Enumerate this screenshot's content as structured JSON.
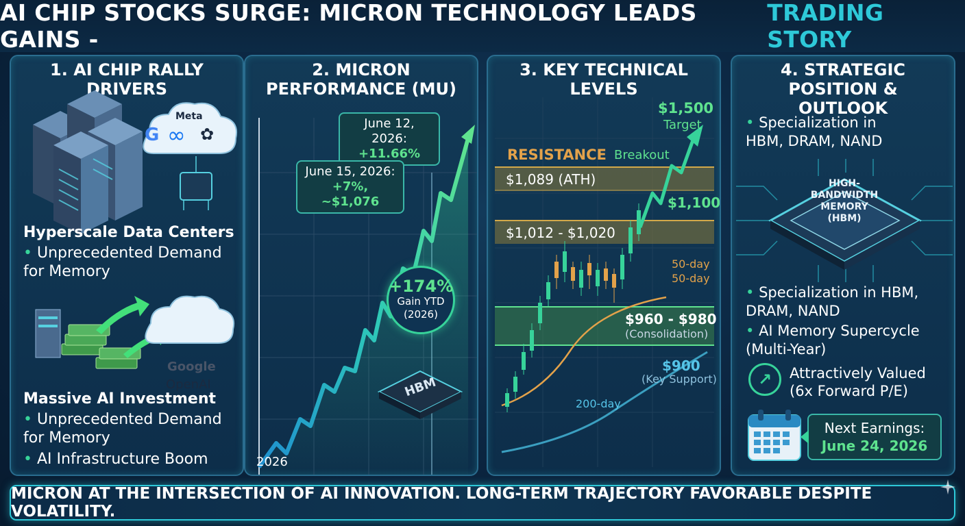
{
  "header": {
    "title_main": "AI CHIP STOCKS SURGE: MICRON TECHNOLOGY LEADS GAINS -",
    "title_accent": "TRADING STORY"
  },
  "panel1": {
    "title": "1. AI CHIP RALLY DRIVERS",
    "logos_top": [
      "Meta"
    ],
    "logos_bottom": [
      "Google",
      "OpenAI"
    ],
    "section1_title": "Hyperscale Data Centers",
    "section1_bullets": [
      "Unprecedented Demand for Memory"
    ],
    "section2_title": "Massive AI Investment",
    "section2_bullets": [
      "Unprecedented Demand for Memory",
      "AI Infrastructure Boom"
    ]
  },
  "panel2": {
    "title": "2. MICRON PERFORMANCE (MU)",
    "callout1_date": "June 12, 2026:",
    "callout1_value": "+11.66%",
    "callout2_date": "June 15, 2026:",
    "callout2_value": "+7%, ~$1,076",
    "gain_value": "+174%",
    "gain_label": "Gain YTD",
    "gain_year": "(2026)",
    "chip_label": "HBM",
    "x_label": "2026"
  },
  "panel3": {
    "title": "3. KEY TECHNICAL LEVELS",
    "target_value": "$1,500",
    "target_label": "Target",
    "resistance_label": "RESISTANCE",
    "breakout_label": "Breakout",
    "ath_label": "$1,089 (ATH)",
    "level_1100": "$1,100",
    "range_label": "$1,012 - $1,020",
    "ma50_label_1": "50-day",
    "ma50_label_2": "50-day",
    "consol_value": "$960 - $980",
    "consol_label": "(Consolidation)",
    "support_value": "$900",
    "support_label": "(Key Support)",
    "ma200_label": "200-day"
  },
  "panel4": {
    "title": "4. STRATEGIC POSITION & OUTLOOK",
    "top_bullet": "Specialization in HBM, DRAM, NAND",
    "chip_label": "HIGH-BANDWIDTH MEMORY (HBM)",
    "bullets": [
      "Specialization in HBM, DRAM, NAND",
      "AI Memory Supercycle (Multi-Year)"
    ],
    "valuation_line1": "Attractively Valued",
    "valuation_line2": "(6x Forward P/E)",
    "earnings_label": "Next Earnings:",
    "earnings_date": "June 24, 2026"
  },
  "footer": {
    "text": "MICRON AT THE INTERSECTION OF AI INNOVATION. LONG-TERM TRAJECTORY FAVORABLE DESPITE VOLATILITY."
  },
  "colors": {
    "accent": "#2ec9d8",
    "green": "#37d39a",
    "gold": "#e3a24a",
    "panel": "#123a57"
  }
}
